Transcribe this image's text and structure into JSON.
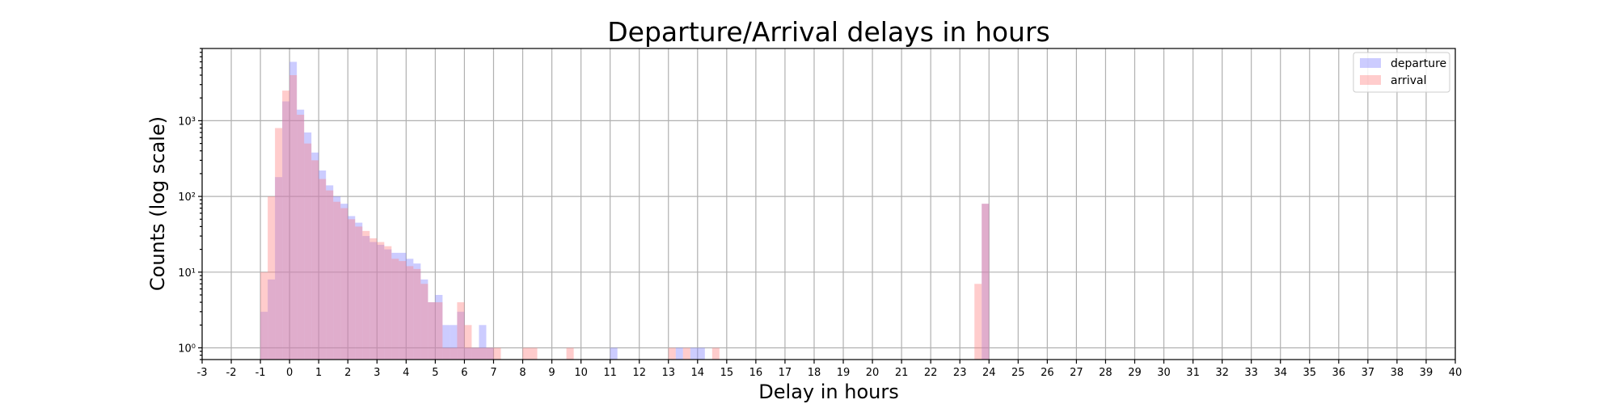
{
  "chart_data": {
    "type": "bar",
    "title": "Departure/Arrival delays in hours",
    "xlabel": "Delay in hours",
    "ylabel": "Counts (log scale)",
    "xlim": [
      -3,
      40
    ],
    "ylim": [
      0.7,
      9000
    ],
    "yscale": "log",
    "grid": true,
    "legend_position": "top-right",
    "bin_width": 0.25,
    "x_ticks": [
      -3,
      -2,
      -1,
      0,
      1,
      2,
      3,
      4,
      5,
      6,
      7,
      8,
      9,
      10,
      11,
      12,
      13,
      14,
      15,
      16,
      17,
      18,
      19,
      20,
      21,
      22,
      23,
      24,
      25,
      26,
      27,
      28,
      29,
      30,
      31,
      32,
      33,
      34,
      35,
      36,
      37,
      38,
      39,
      40
    ],
    "y_ticks": [
      {
        "value": 1,
        "label": "10⁰"
      },
      {
        "value": 10,
        "label": "10¹"
      },
      {
        "value": 100,
        "label": "10²"
      },
      {
        "value": 1000,
        "label": "10³"
      }
    ],
    "series": [
      {
        "name": "departure",
        "color": "#8080ff",
        "opacity": 0.4,
        "bins": [
          [
            -1.0,
            3
          ],
          [
            -0.75,
            8
          ],
          [
            -0.5,
            180
          ],
          [
            -0.25,
            1800
          ],
          [
            0.0,
            6000
          ],
          [
            0.25,
            1400
          ],
          [
            0.5,
            700
          ],
          [
            0.75,
            380
          ],
          [
            1.0,
            220
          ],
          [
            1.25,
            140
          ],
          [
            1.5,
            100
          ],
          [
            1.75,
            80
          ],
          [
            2.0,
            55
          ],
          [
            2.25,
            45
          ],
          [
            2.5,
            30
          ],
          [
            2.75,
            25
          ],
          [
            3.0,
            23
          ],
          [
            3.25,
            20
          ],
          [
            3.5,
            18
          ],
          [
            3.75,
            18
          ],
          [
            4.0,
            15
          ],
          [
            4.25,
            13
          ],
          [
            4.5,
            8
          ],
          [
            4.75,
            4
          ],
          [
            5.0,
            5
          ],
          [
            5.25,
            2
          ],
          [
            5.5,
            2
          ],
          [
            5.75,
            3
          ],
          [
            6.0,
            1
          ],
          [
            6.25,
            1
          ],
          [
            6.5,
            2
          ],
          [
            6.75,
            1
          ],
          [
            11.0,
            1
          ],
          [
            13.25,
            1
          ],
          [
            13.75,
            1
          ],
          [
            14.0,
            1
          ],
          [
            23.75,
            80
          ]
        ]
      },
      {
        "name": "arrival",
        "color": "#ff8080",
        "opacity": 0.4,
        "bins": [
          [
            -1.0,
            10
          ],
          [
            -0.75,
            100
          ],
          [
            -0.5,
            800
          ],
          [
            -0.25,
            2500
          ],
          [
            0.0,
            4000
          ],
          [
            0.25,
            1200
          ],
          [
            0.5,
            500
          ],
          [
            0.75,
            300
          ],
          [
            1.0,
            170
          ],
          [
            1.25,
            120
          ],
          [
            1.5,
            85
          ],
          [
            1.75,
            70
          ],
          [
            2.0,
            50
          ],
          [
            2.25,
            40
          ],
          [
            2.5,
            35
          ],
          [
            2.75,
            28
          ],
          [
            3.0,
            25
          ],
          [
            3.25,
            22
          ],
          [
            3.5,
            15
          ],
          [
            3.75,
            14
          ],
          [
            4.0,
            12
          ],
          [
            4.25,
            11
          ],
          [
            4.5,
            7
          ],
          [
            4.75,
            4
          ],
          [
            5.0,
            4
          ],
          [
            5.25,
            1
          ],
          [
            5.5,
            1
          ],
          [
            5.75,
            4
          ],
          [
            6.0,
            2
          ],
          [
            6.25,
            1
          ],
          [
            6.5,
            1
          ],
          [
            6.75,
            1
          ],
          [
            7.0,
            1
          ],
          [
            8.0,
            1
          ],
          [
            8.25,
            1
          ],
          [
            9.5,
            1
          ],
          [
            13.0,
            1
          ],
          [
            13.5,
            1
          ],
          [
            14.5,
            1
          ],
          [
            23.5,
            7
          ],
          [
            23.75,
            80
          ]
        ]
      }
    ]
  }
}
